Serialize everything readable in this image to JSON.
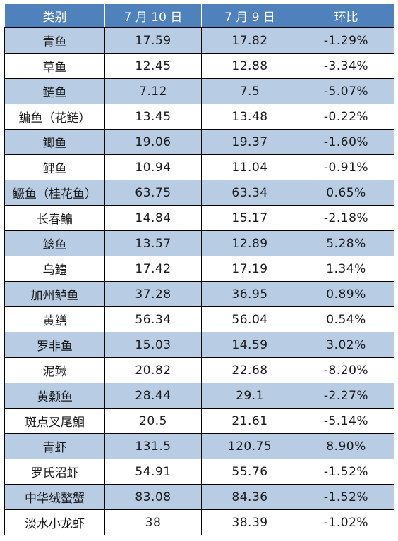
{
  "headers": [
    "类别",
    "7 月 10 日",
    "7 月 9 日",
    "环比"
  ],
  "rows": [
    [
      "青鱼",
      "17.59",
      "17.82",
      "-1.29%"
    ],
    [
      "草鱼",
      "12.45",
      "12.88",
      "-3.34%"
    ],
    [
      "鲢鱼",
      "7.12",
      "7.5",
      "-5.07%"
    ],
    [
      "鳙鱼（花鲢）",
      "13.45",
      "13.48",
      "-0.22%"
    ],
    [
      "鲫鱼",
      "19.06",
      "19.37",
      "-1.60%"
    ],
    [
      "鲤鱼",
      "10.94",
      "11.04",
      "-0.91%"
    ],
    [
      "鳜鱼（桂花鱼）",
      "63.75",
      "63.34",
      "0.65%"
    ],
    [
      "长春鳊",
      "14.84",
      "15.17",
      "-2.18%"
    ],
    [
      "鲶鱼",
      "13.57",
      "12.89",
      "5.28%"
    ],
    [
      "乌鳢",
      "17.42",
      "17.19",
      "1.34%"
    ],
    [
      "加州鲈鱼",
      "37.28",
      "36.95",
      "0.89%"
    ],
    [
      "黄鳝",
      "56.34",
      "56.04",
      "0.54%"
    ],
    [
      "罗非鱼",
      "15.03",
      "14.59",
      "3.02%"
    ],
    [
      "泥鳅",
      "20.82",
      "22.68",
      "-8.20%"
    ],
    [
      "黄颡鱼",
      "28.44",
      "29.1",
      "-2.27%"
    ],
    [
      "斑点叉尾鮰",
      "20.5",
      "21.61",
      "-5.14%"
    ],
    [
      "青虾",
      "131.5",
      "120.75",
      "8.90%"
    ],
    [
      "罗氏沼虾",
      "54.91",
      "55.76",
      "-1.52%"
    ],
    [
      "中华绒螯蟹",
      "83.08",
      "84.36",
      "-1.52%"
    ],
    [
      "淡水小龙虾",
      "38",
      "38.39",
      "-1.02%"
    ]
  ],
  "colors": {
    "header_bg": "#4f81bd",
    "header_text": "#ffffff",
    "band_bg": "#b8cce4",
    "plain_bg": "#ffffff"
  }
}
